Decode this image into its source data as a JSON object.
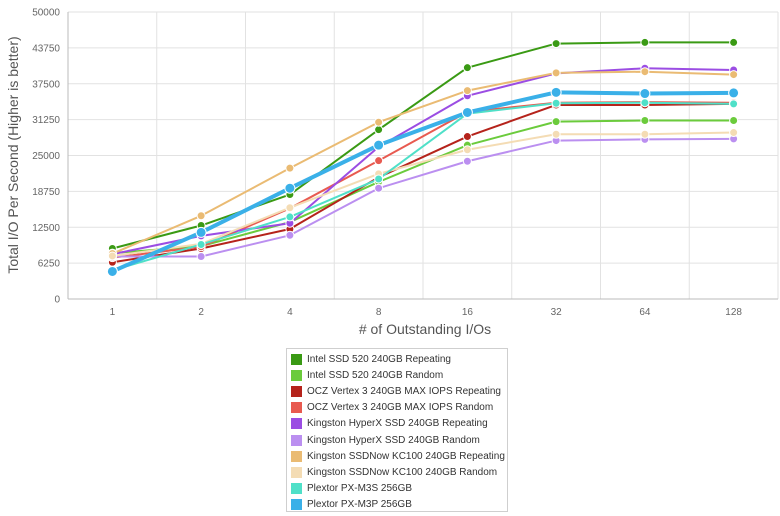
{
  "chart_data": {
    "type": "line",
    "title": "",
    "xlabel": "# of Outstanding I/Os",
    "ylabel": "Total I/O Per Second (Higher is better)",
    "categories": [
      "1",
      "2",
      "4",
      "8",
      "16",
      "32",
      "64",
      "128"
    ],
    "ylim": [
      0,
      50000
    ],
    "yticks": [
      "0",
      "6250",
      "12500",
      "18750",
      "25000",
      "31250",
      "37500",
      "43750",
      "50000"
    ],
    "grid": true,
    "legend_position": "bottom",
    "series": [
      {
        "name": "Intel SSD 520 240GB Repeating",
        "color": "#3a9a14",
        "values": [
          8800,
          12800,
          18200,
          29500,
          40300,
          44500,
          44700,
          44700
        ]
      },
      {
        "name": "Intel SSD 520 240GB Random",
        "color": "#6bcb3c",
        "values": [
          8000,
          9200,
          13400,
          20400,
          26800,
          30900,
          31100,
          31100
        ]
      },
      {
        "name": "OCZ Vertex 3 240GB MAX IOPS Repeating",
        "color": "#b5231b",
        "values": [
          6400,
          8800,
          12200,
          21200,
          28300,
          33800,
          33800,
          34000
        ]
      },
      {
        "name": "OCZ Vertex 3 240GB MAX IOPS Random",
        "color": "#e85a50",
        "values": [
          7200,
          9100,
          15800,
          24100,
          32600,
          34200,
          34300,
          34200
        ]
      },
      {
        "name": "Kingston HyperX SSD 240GB Repeating",
        "color": "#9b4de3",
        "values": [
          7800,
          11000,
          13200,
          26500,
          35400,
          39300,
          40200,
          39900
        ]
      },
      {
        "name": "Kingston HyperX SSD 240GB Random",
        "color": "#bb8ff0",
        "values": [
          7400,
          7400,
          11100,
          19300,
          24000,
          27600,
          27800,
          27900
        ]
      },
      {
        "name": "Kingston SSDNow KC100 240GB Repeating",
        "color": "#eabb73",
        "values": [
          7900,
          14500,
          22800,
          30800,
          36300,
          39400,
          39600,
          39100
        ]
      },
      {
        "name": "Kingston SSDNow KC100 240GB Random",
        "color": "#f4dcb4",
        "values": [
          7500,
          9600,
          15900,
          21800,
          26000,
          28700,
          28700,
          29000
        ]
      },
      {
        "name": "Plextor PX-M3S 256GB",
        "color": "#4fe0c8",
        "values": [
          5000,
          9500,
          14300,
          20900,
          32300,
          34100,
          34200,
          34000
        ]
      },
      {
        "name": "Plextor PX-M3P 256GB",
        "color": "#3ab0e8",
        "values": [
          4800,
          11600,
          19300,
          26800,
          32500,
          36000,
          35800,
          35900
        ]
      }
    ]
  }
}
